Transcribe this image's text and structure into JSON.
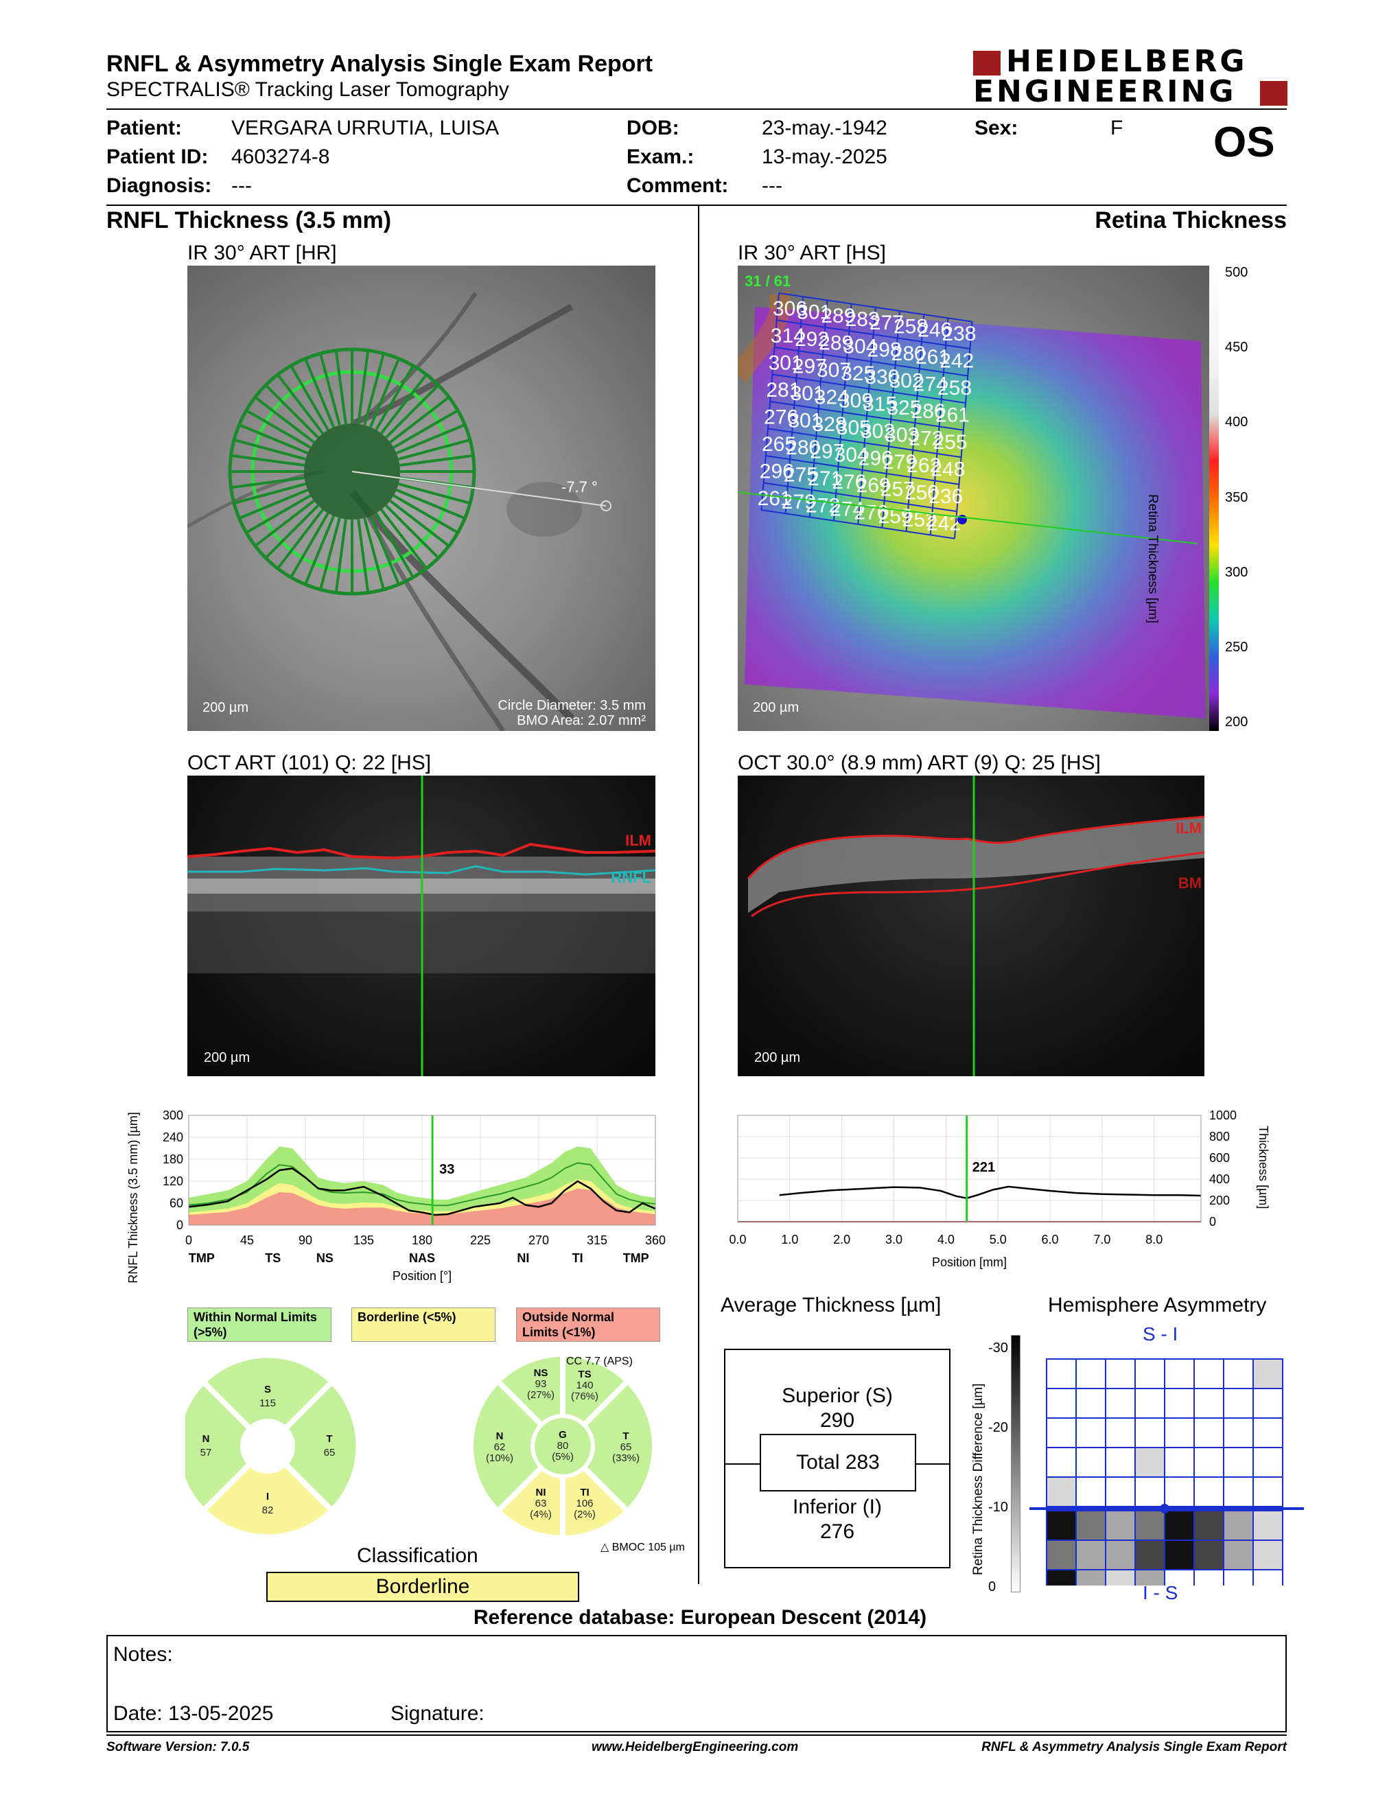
{
  "report": {
    "title": "RNFL & Asymmetry Analysis Single Exam Report",
    "subtitle": "SPECTRALIS® Tracking Laser Tomography",
    "logo_line1": "HEIDELBERG",
    "logo_line2": "ENGINEERING"
  },
  "patient": {
    "name_label": "Patient:",
    "name": "VERGARA URRUTIA, LUISA",
    "id_label": "Patient ID:",
    "id": "4603274-8",
    "diagnosis_label": "Diagnosis:",
    "diagnosis": "---",
    "dob_label": "DOB:",
    "dob": "23-may.-1942",
    "exam_label": "Exam.:",
    "exam": "13-may.-2025",
    "comment_label": "Comment:",
    "comment": "---",
    "sex_label": "Sex:",
    "sex": "F",
    "eye": "OS"
  },
  "rnfl": {
    "heading": "RNFL Thickness (3.5 mm)",
    "ir_title": "IR 30° ART [HR]",
    "angle": "-7.7 °",
    "scale": "200 µm",
    "circle_diameter": "Circle Diameter: 3.5 mm",
    "bmo_area": "BMO Area: 2.07 mm²",
    "oct_title": "OCT ART (101) Q: 22 [HS]",
    "ilm": "ILM",
    "rnfl_label": "RNFL",
    "oct_scale": "200 µm",
    "cursor_value": "33",
    "chart_ylabel": "RNFL Thickness (3.5 mm) [µm]",
    "chart_xlabel": "Position [°]",
    "legend_within": "Within Normal Limits (>5%)",
    "legend_border": "Borderline (<5%)",
    "legend_outside": "Outside Normal Limits (<1%)",
    "cc_label": "CC 7.7 (APS)",
    "bmo_delta": "BMOC 105 µm",
    "classification_label": "Classification",
    "classification": "Borderline"
  },
  "sectors_4": {
    "S": {
      "label": "S",
      "value": "115"
    },
    "N": {
      "label": "N",
      "value": "57"
    },
    "T": {
      "label": "T",
      "value": "65"
    },
    "I": {
      "label": "I",
      "value": "82"
    }
  },
  "sectors_6": {
    "NS": {
      "label": "NS",
      "value": "93",
      "pct": "(27%)"
    },
    "TS": {
      "label": "TS",
      "value": "140",
      "pct": "(76%)"
    },
    "N": {
      "label": "N",
      "value": "62",
      "pct": "(10%)"
    },
    "G": {
      "label": "G",
      "value": "80",
      "pct": "(5%)"
    },
    "T": {
      "label": "T",
      "value": "65",
      "pct": "(33%)"
    },
    "NI": {
      "label": "NI",
      "value": "63",
      "pct": "(4%)"
    },
    "TI": {
      "label": "TI",
      "value": "106",
      "pct": "(2%)"
    }
  },
  "retina": {
    "heading": "Retina Thickness",
    "ir_title": "IR 30° ART [HS]",
    "frame": "31 / 61",
    "scale": "200 µm",
    "colorbar_label": "Retina Thickness [µm]",
    "colorbar_ticks": [
      "500",
      "450",
      "400",
      "350",
      "300",
      "250",
      "200"
    ],
    "grid": [
      [
        "306",
        "301",
        "289",
        "283",
        "277",
        "258",
        "246",
        "238"
      ],
      [
        "314",
        "292",
        "289",
        "304",
        "298",
        "280",
        "261",
        "242"
      ],
      [
        "301",
        "297",
        "307",
        "325",
        "330",
        "302",
        "274",
        "258"
      ],
      [
        "281",
        "301",
        "324",
        "309",
        "315",
        "325",
        "286",
        "261"
      ],
      [
        "276",
        "301",
        "328",
        "305",
        "302",
        "303",
        "272",
        "255"
      ],
      [
        "265",
        "280",
        "297",
        "304",
        "296",
        "279",
        "262",
        "248"
      ],
      [
        "296",
        "275",
        "271",
        "276",
        "269",
        "257",
        "250",
        "236"
      ],
      [
        "261",
        "279",
        "272",
        "274",
        "276",
        "259",
        "252",
        "242"
      ]
    ],
    "oct_title": "OCT 30.0° (8.9 mm) ART (9) Q: 25 [HS]",
    "ilm": "ILM",
    "bm": "BM",
    "oct_scale": "200 µm",
    "cursor_value": "221",
    "chart_ylabel": "Thickness [µm]",
    "chart_xlabel": "Position [mm]",
    "avg_title": "Average Thickness [µm]",
    "superior_label": "Superior (S)",
    "superior": "290",
    "total": "Total 283",
    "inferior_label": "Inferior (I)",
    "inferior": "276",
    "hemi_title": "Hemisphere Asymmetry",
    "hemi_top": "S - I",
    "hemi_bottom": "I - S",
    "hemi_ylabel": "Retina Thickness Difference [µm]",
    "hemi_ticks": [
      "-30",
      "-20",
      "-10",
      "0"
    ],
    "database": "Reference database: European Descent (2014)"
  },
  "notes": {
    "notes_label": "Notes:",
    "date_label": "Date: 13-05-2025",
    "signature_label": "Signature:"
  },
  "footer": {
    "software": "Software Version: 7.0.5",
    "url": "www.HeidelbergEngineering.com",
    "report_name": "RNFL & Asymmetry Analysis Single Exam Report"
  },
  "chart_data": [
    {
      "type": "line",
      "title": "",
      "ylabel": "RNFL Thickness (3.5 mm) [µm]",
      "xlabel": "Position [°]",
      "xlim": [
        0,
        360
      ],
      "ylim": [
        0,
        300
      ],
      "xticks": [
        "0",
        "45",
        "90",
        "135",
        "180",
        "225",
        "270",
        "315",
        "360"
      ],
      "yticks": [
        "0",
        "60",
        "120",
        "180",
        "240",
        "300"
      ],
      "sector_labels": [
        "TMP",
        "TS",
        "NS",
        "NAS",
        "NI",
        "TI",
        "TMP"
      ],
      "sector_positions": [
        10,
        65,
        105,
        180,
        258,
        300,
        345
      ],
      "cursor_x": 188,
      "cursor_value": "33",
      "series": [
        {
          "x": [
            0,
            15,
            30,
            45,
            60,
            70,
            80,
            90,
            100,
            110,
            120,
            135,
            150,
            160,
            170,
            180,
            190,
            200,
            210,
            220,
            230,
            240,
            250,
            260,
            270,
            280,
            290,
            300,
            310,
            320,
            330,
            340,
            350,
            360
          ],
          "values": [
            50,
            56,
            65,
            95,
            125,
            150,
            155,
            130,
            100,
            95,
            95,
            105,
            80,
            60,
            40,
            35,
            28,
            30,
            40,
            50,
            55,
            60,
            75,
            55,
            50,
            60,
            95,
            120,
            100,
            65,
            40,
            35,
            60,
            45
          ]
        }
      ],
      "normal_upper": [
        75,
        85,
        95,
        120,
        180,
        215,
        210,
        170,
        130,
        120,
        115,
        120,
        110,
        90,
        80,
        75,
        70,
        70,
        80,
        90,
        100,
        110,
        120,
        130,
        150,
        170,
        200,
        215,
        210,
        160,
        110,
        90,
        80,
        75
      ],
      "normal_mid": [
        55,
        60,
        70,
        90,
        140,
        165,
        160,
        130,
        100,
        90,
        88,
        90,
        85,
        70,
        62,
        58,
        54,
        54,
        62,
        70,
        78,
        85,
        95,
        105,
        115,
        130,
        155,
        170,
        165,
        125,
        85,
        70,
        62,
        58
      ],
      "borderline": [
        35,
        40,
        45,
        60,
        95,
        115,
        110,
        90,
        70,
        60,
        58,
        62,
        60,
        50,
        42,
        40,
        38,
        38,
        42,
        48,
        52,
        58,
        65,
        72,
        80,
        90,
        110,
        125,
        120,
        90,
        60,
        48,
        42,
        38
      ],
      "outside": [
        28,
        32,
        36,
        48,
        75,
        90,
        88,
        72,
        55,
        48,
        45,
        48,
        48,
        40,
        34,
        32,
        30,
        30,
        34,
        38,
        42,
        46,
        52,
        58,
        64,
        72,
        88,
        100,
        96,
        72,
        48,
        38,
        34,
        30
      ]
    },
    {
      "type": "line",
      "title": "",
      "ylabel": "Thickness [µm]",
      "xlabel": "Position [mm]",
      "xlim": [
        0,
        8.9
      ],
      "ylim": [
        0,
        1000
      ],
      "xticks": [
        "0.0",
        "1.0",
        "2.0",
        "3.0",
        "4.0",
        "5.0",
        "6.0",
        "7.0",
        "8.0"
      ],
      "yticks": [
        "0",
        "200",
        "400",
        "600",
        "800",
        "1000"
      ],
      "cursor_x": 4.4,
      "cursor_value": "221",
      "series": [
        {
          "x": [
            0.8,
            1.2,
            1.8,
            2.4,
            3.0,
            3.5,
            3.9,
            4.2,
            4.4,
            4.6,
            4.9,
            5.2,
            5.6,
            6.0,
            6.5,
            7.0,
            7.5,
            8.0,
            8.5,
            8.9
          ],
          "values": [
            250,
            270,
            295,
            310,
            325,
            320,
            290,
            240,
            221,
            250,
            300,
            330,
            310,
            290,
            270,
            260,
            255,
            250,
            250,
            245
          ]
        }
      ]
    },
    {
      "type": "heatmap",
      "title": "Hemisphere Asymmetry",
      "rows_top": [
        [
          0,
          0,
          0,
          0,
          0,
          0,
          0,
          1
        ],
        [
          0,
          0,
          0,
          0,
          0,
          0,
          0,
          0
        ],
        [
          0,
          0,
          0,
          0,
          0,
          0,
          0,
          0
        ],
        [
          0,
          0,
          0,
          1,
          0,
          0,
          0,
          0
        ],
        [
          1,
          0,
          0,
          0,
          0,
          0,
          0,
          0
        ]
      ],
      "rows_bottom": [
        [
          5,
          3,
          2,
          3,
          5,
          4,
          2,
          1
        ],
        [
          3,
          2,
          2,
          4,
          5,
          4,
          2,
          1
        ],
        [
          5,
          2,
          1,
          2,
          0,
          0,
          0,
          0
        ]
      ],
      "scale_range": [
        0,
        -30
      ]
    }
  ]
}
